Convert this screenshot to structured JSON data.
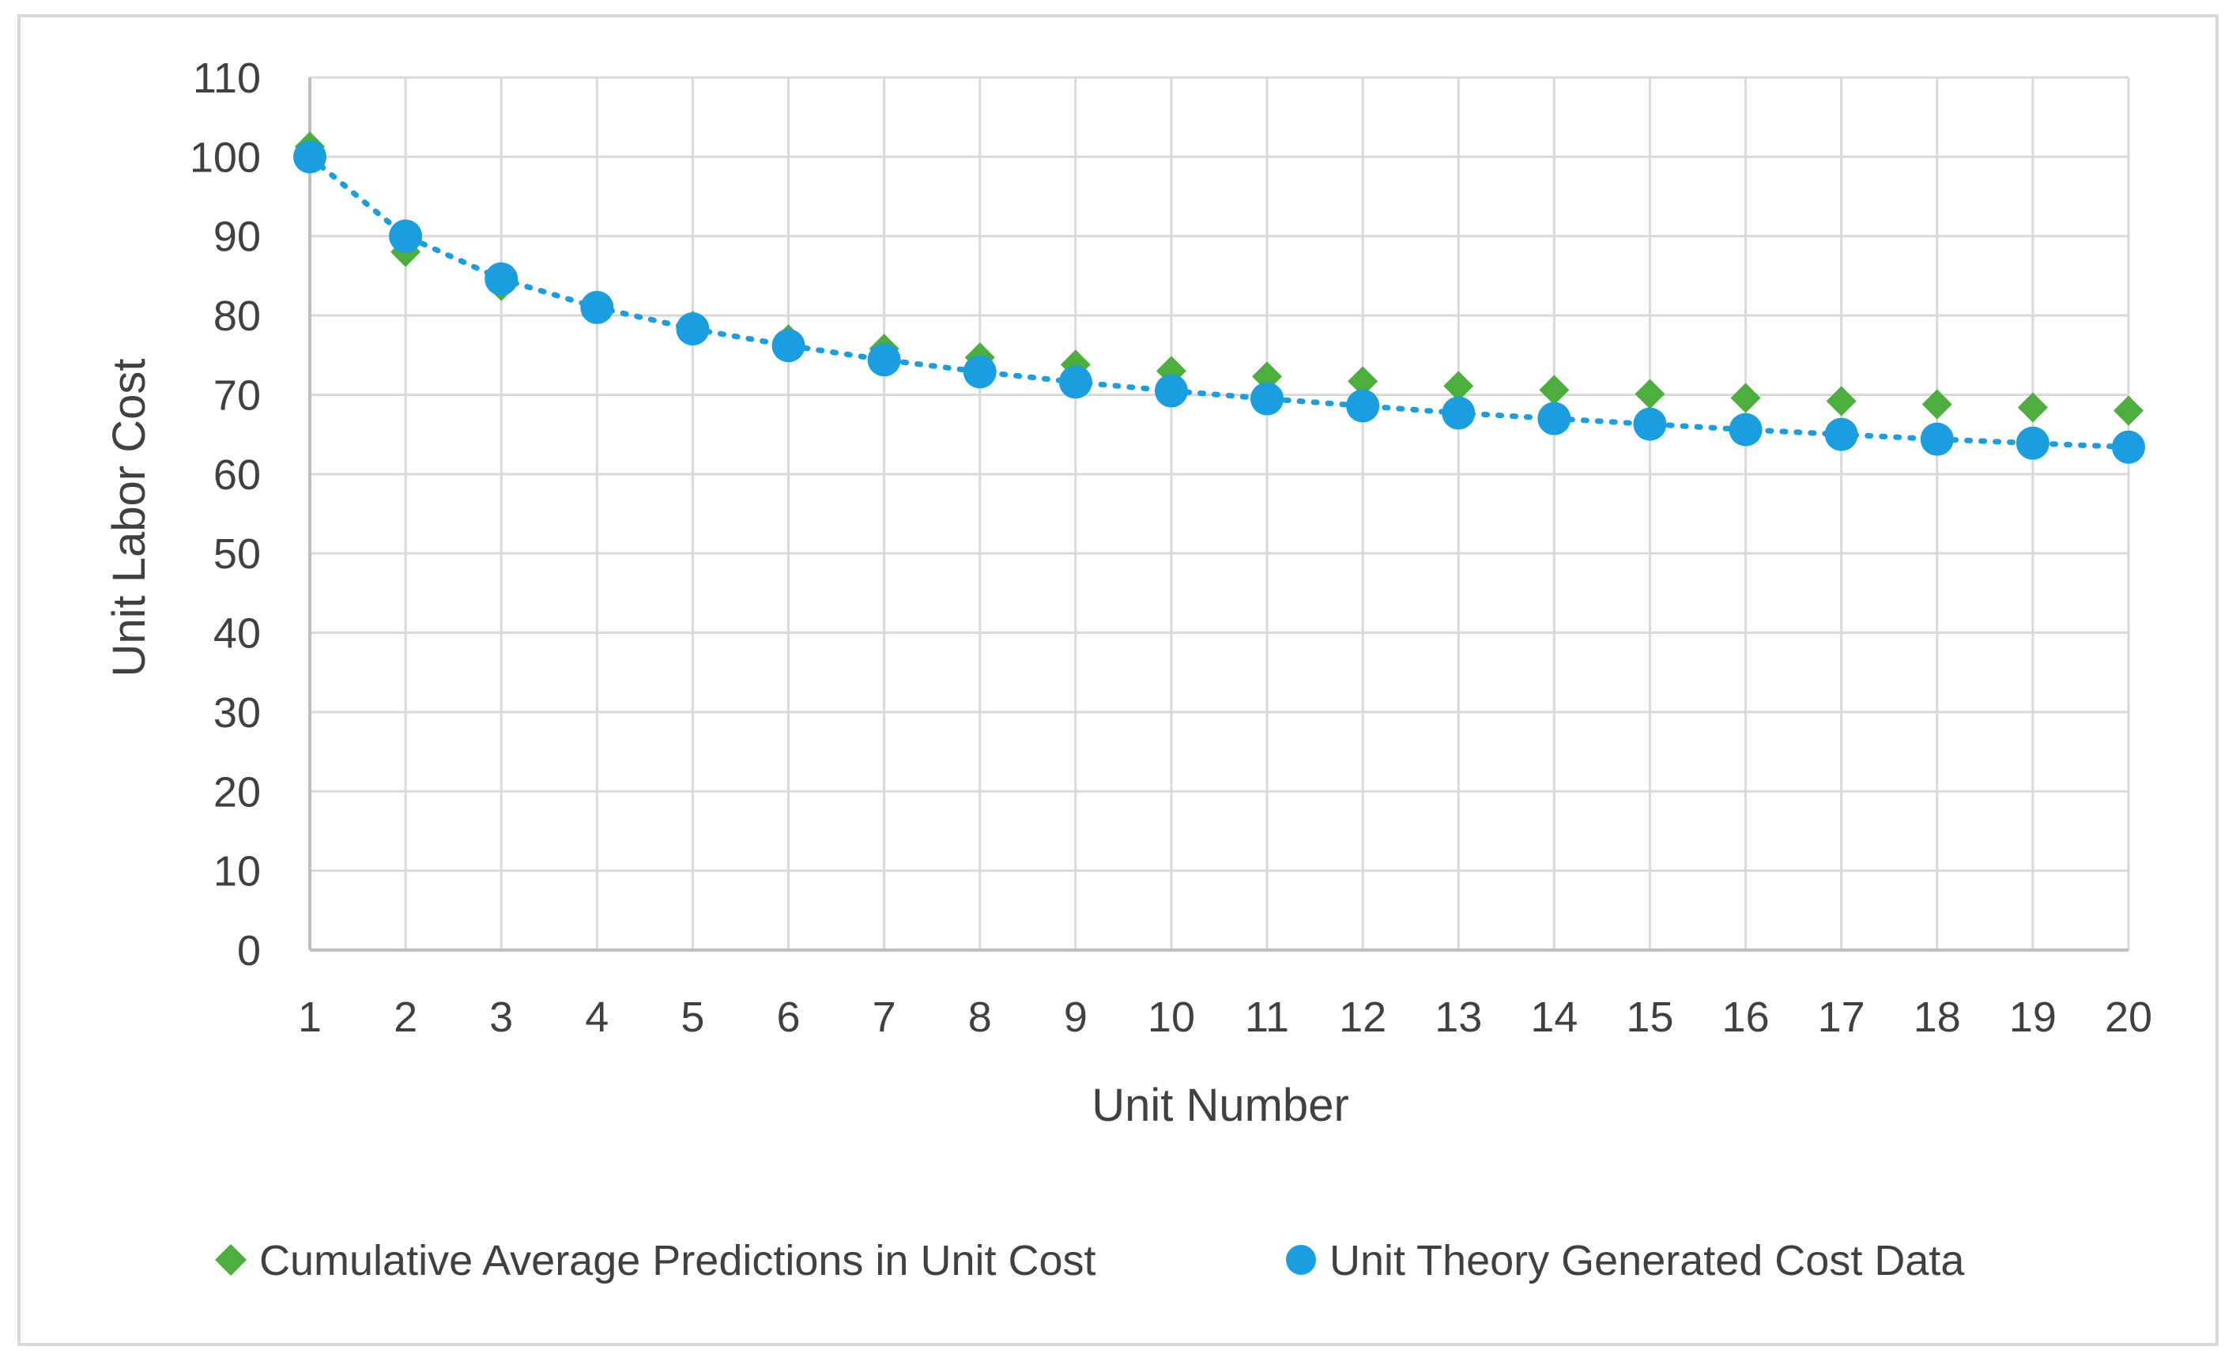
{
  "chart_data": {
    "type": "scatter",
    "title": "",
    "xlabel": "Unit Number",
    "ylabel": "Unit Labor Cost",
    "x": [
      1,
      2,
      3,
      4,
      5,
      6,
      7,
      8,
      9,
      10,
      11,
      12,
      13,
      14,
      15,
      16,
      17,
      18,
      19,
      20
    ],
    "xlim": [
      1,
      20
    ],
    "ylim": [
      0,
      110
    ],
    "y_ticks": [
      0,
      10,
      20,
      30,
      40,
      50,
      60,
      70,
      80,
      90,
      100,
      110
    ],
    "x_ticks": [
      1,
      2,
      3,
      4,
      5,
      6,
      7,
      8,
      9,
      10,
      11,
      12,
      13,
      14,
      15,
      16,
      17,
      18,
      19,
      20
    ],
    "grid": true,
    "legend_position": "bottom",
    "series": [
      {
        "name": "Cumulative Average Predictions in Unit Cost",
        "marker": "diamond",
        "color": "#4cae3c",
        "values": [
          101.3,
          88.0,
          83.7,
          81.0,
          78.7,
          77.0,
          75.8,
          74.7,
          73.8,
          73.0,
          72.3,
          71.7,
          71.1,
          70.6,
          70.1,
          69.6,
          69.2,
          68.8,
          68.4,
          68.0
        ]
      },
      {
        "name": "Unit Theory Generated Cost Data",
        "marker": "circle",
        "color": "#1a9ee0",
        "trendline": "dotted",
        "values": [
          100.0,
          90.0,
          84.6,
          81.0,
          78.3,
          76.2,
          74.4,
          72.9,
          71.6,
          70.5,
          69.5,
          68.6,
          67.7,
          67.0,
          66.3,
          65.6,
          65.0,
          64.4,
          63.9,
          63.4
        ]
      }
    ]
  }
}
